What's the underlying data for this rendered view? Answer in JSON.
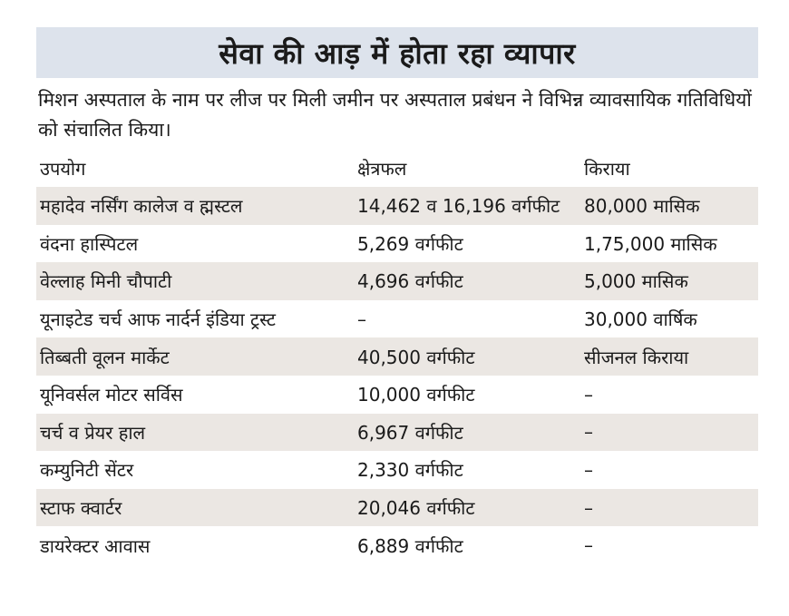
{
  "headline": "सेवा की आड़ में होता रहा व्यापार",
  "intro": "मिशन अस्पताल के नाम पर लीज पर मिली जमीन पर अस्पताल प्रबंधन ने विभिन्न व्यावसायिक गतिविधियों को संचालित किया।",
  "table": {
    "headers": [
      "उपयोग",
      "क्षेत्रफल",
      "किराया"
    ],
    "rows": [
      [
        "महादेव नर्सिंग कालेज व ह्मस्टल",
        "14,462 व 16,196 वर्गफीट",
        "80,000 मासिक"
      ],
      [
        "वंदना हास्पिटल",
        "5,269 वर्गफीट",
        "1,75,000 मासिक"
      ],
      [
        "वेल्लाह मिनी चौपाटी",
        "4,696 वर्गफीट",
        "5,000 मासिक"
      ],
      [
        "यूनाइटेड चर्च आफ नार्दर्न इंडिया ट्रस्ट",
        "–",
        "30,000 वार्षिक"
      ],
      [
        "तिब्बती वूलन मार्केट",
        "40,500 वर्गफीट",
        "सीजनल किराया"
      ],
      [
        "यूनिवर्सल मोटर सर्विस",
        "10,000 वर्गफीट",
        "–"
      ],
      [
        "चर्च व प्रेयर हाल",
        "6,967 वर्गफीट",
        "–"
      ],
      [
        "कम्युनिटी सेंटर",
        "2,330 वर्गफीट",
        "–"
      ],
      [
        "स्टाफ क्वार्टर",
        "20,046 वर्गफीट",
        "–"
      ],
      [
        "डायरेक्टर आवास",
        "6,889 वर्गफीट",
        "–"
      ]
    ]
  }
}
